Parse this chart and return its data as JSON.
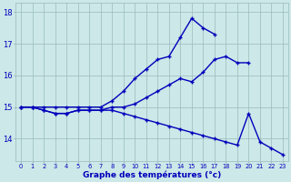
{
  "xlabel": "Graphe des températures (°c)",
  "hours": [
    0,
    1,
    2,
    3,
    4,
    5,
    6,
    7,
    8,
    9,
    10,
    11,
    12,
    13,
    14,
    15,
    16,
    17,
    18,
    19,
    20,
    21,
    22,
    23
  ],
  "xtick_labels": [
    "0",
    "1",
    "2",
    "3",
    "4",
    "5",
    "6",
    "7",
    "8",
    "9",
    "10",
    "11",
    "12",
    "13",
    "14",
    "15",
    "16",
    "17",
    "18",
    "19",
    "20",
    "21",
    "22",
    "23"
  ],
  "line_up": [
    15.0,
    15.0,
    15.0,
    15.0,
    15.0,
    15.0,
    15.0,
    15.0,
    15.2,
    15.5,
    15.9,
    16.2,
    16.5,
    16.6,
    17.2,
    17.8,
    17.5,
    17.3,
    null,
    null,
    null,
    null,
    null,
    null
  ],
  "line_mid": [
    15.0,
    15.0,
    14.9,
    14.8,
    14.8,
    14.9,
    14.9,
    14.9,
    15.0,
    15.0,
    15.1,
    15.3,
    15.5,
    15.7,
    15.9,
    15.8,
    16.1,
    16.5,
    16.6,
    16.4,
    16.4,
    null,
    null,
    null
  ],
  "line_down": [
    15.0,
    15.0,
    14.9,
    14.8,
    14.8,
    14.9,
    14.9,
    14.9,
    14.9,
    14.8,
    14.7,
    14.6,
    14.5,
    14.4,
    14.3,
    14.2,
    14.1,
    14.0,
    13.9,
    13.8,
    14.8,
    13.9,
    13.7,
    13.5
  ],
  "bg_color": "#cce8e8",
  "line_color": "#0000bb",
  "grid_color": "#99bbbb",
  "ylim": [
    13.3,
    18.3
  ],
  "yticks": [
    14,
    15,
    16,
    17,
    18
  ],
  "axis_color": "#0000bb",
  "xlabel_color": "#0000bb"
}
